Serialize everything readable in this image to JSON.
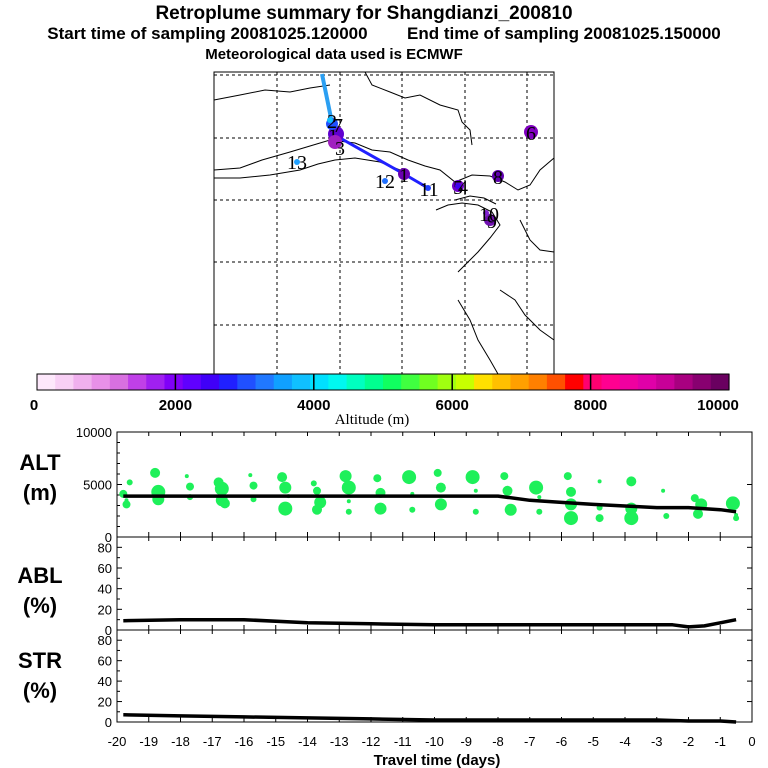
{
  "header": {
    "title": "Retroplume summary for Shangdianzi_200810",
    "start_label": "Start time of sampling 20081025.120000",
    "end_label": "End time of sampling 20081025.150000",
    "met_label": "Meteorological data used is ECMWF"
  },
  "map": {
    "point_labels": [
      "1",
      "3",
      "6",
      "1",
      "5",
      "8",
      "9",
      "7",
      "12",
      "11",
      "13",
      "10",
      "4",
      "2"
    ]
  },
  "colorbar": {
    "ticks": [
      "0",
      "2000",
      "4000",
      "6000",
      "8000",
      "10000"
    ],
    "label": "Altitude (m)",
    "colors": [
      "#fde8fb",
      "#f8d0f5",
      "#f0b0ee",
      "#e890e8",
      "#d870e0",
      "#c040e8",
      "#a020f0",
      "#8000f8",
      "#6000ff",
      "#4000f8",
      "#2020ff",
      "#2050ff",
      "#2078ff",
      "#10a0ff",
      "#10c0ff",
      "#00e0ff",
      "#00f8f0",
      "#00ffc0",
      "#00ff90",
      "#10ff60",
      "#40ff40",
      "#70ff20",
      "#a0ff10",
      "#c8ff00",
      "#ffe000",
      "#ffc000",
      "#ffa000",
      "#ff8000",
      "#ff5000",
      "#ff0000",
      "#ff0070",
      "#ff0090",
      "#f000a0",
      "#e000a8",
      "#c80098",
      "#a80080",
      "#880070",
      "#6a0060"
    ]
  },
  "chart_data": [
    {
      "type": "line",
      "name": "ALT",
      "ylabel": "ALT (m)",
      "ylabel_lines": [
        "ALT",
        "(m)"
      ],
      "ylim": [
        0,
        10000
      ],
      "yticks": [
        "10000",
        "5000",
        "0"
      ],
      "x": [
        -19.8,
        -18,
        -16,
        -14,
        -12,
        -10,
        -8,
        -7,
        -6,
        -5,
        -4,
        -3,
        -2,
        -1,
        -0.5
      ],
      "values": [
        3900,
        3900,
        3900,
        3900,
        3900,
        3900,
        3900,
        3500,
        3300,
        3100,
        2950,
        2800,
        2800,
        2600,
        2400
      ],
      "scatter": [
        [
          -19.7,
          3500
        ],
        [
          -19.6,
          5200
        ],
        [
          -19.7,
          3100
        ],
        [
          -18.8,
          6100
        ],
        [
          -18.7,
          3600
        ],
        [
          -18.7,
          4300
        ],
        [
          -17.8,
          5800
        ],
        [
          -17.7,
          3800
        ],
        [
          -17.7,
          4800
        ],
        [
          -16.8,
          5200
        ],
        [
          -16.7,
          3500
        ],
        [
          -16.7,
          4600
        ],
        [
          -15.8,
          5900
        ],
        [
          -15.7,
          3600
        ],
        [
          -15.7,
          4900
        ],
        [
          -14.8,
          5700
        ],
        [
          -14.7,
          4700
        ],
        [
          -14.7,
          2700
        ],
        [
          -14.6,
          3900
        ],
        [
          -13.8,
          5100
        ],
        [
          -13.7,
          4400
        ],
        [
          -13.7,
          2600
        ],
        [
          -12.8,
          5800
        ],
        [
          -12.7,
          4700
        ],
        [
          -12.7,
          3400
        ],
        [
          -12.7,
          2400
        ],
        [
          -11.8,
          5600
        ],
        [
          -11.7,
          4200
        ],
        [
          -11.7,
          2700
        ],
        [
          -10.8,
          5700
        ],
        [
          -10.7,
          4100
        ],
        [
          -10.7,
          2600
        ],
        [
          -9.9,
          6100
        ],
        [
          -9.8,
          4700
        ],
        [
          -9.8,
          3100
        ],
        [
          -8.8,
          5700
        ],
        [
          -8.7,
          4400
        ],
        [
          -8.7,
          2400
        ],
        [
          -7.8,
          5800
        ],
        [
          -7.7,
          4400
        ],
        [
          -7.6,
          2600
        ],
        [
          -6.8,
          4700
        ],
        [
          -6.7,
          3800
        ],
        [
          -6.7,
          2400
        ],
        [
          -5.8,
          5800
        ],
        [
          -5.7,
          4300
        ],
        [
          -5.7,
          3100
        ],
        [
          -5.7,
          1800
        ],
        [
          -4.8,
          5300
        ],
        [
          -4.8,
          2800
        ],
        [
          -4.8,
          1800
        ],
        [
          -3.8,
          5300
        ],
        [
          -3.8,
          2700
        ],
        [
          -3.8,
          1800
        ],
        [
          -2.8,
          4400
        ],
        [
          -2.7,
          2000
        ],
        [
          -1.8,
          3700
        ],
        [
          -1.7,
          2200
        ],
        [
          -1.6,
          3100
        ],
        [
          -0.6,
          3200
        ],
        [
          -0.5,
          2100
        ],
        [
          -0.5,
          1800
        ],
        [
          -19.8,
          4100
        ],
        [
          -16.6,
          3200
        ],
        [
          -13.6,
          3300
        ]
      ]
    },
    {
      "type": "line",
      "name": "ABL",
      "ylabel": "ABL (%)",
      "ylabel_lines": [
        "ABL",
        "(%)"
      ],
      "ylim": [
        0,
        90
      ],
      "yticks": [
        "80",
        "60",
        "40",
        "20",
        "0"
      ],
      "x": [
        -19.8,
        -18,
        -16,
        -14,
        -12,
        -10,
        -8,
        -6,
        -4,
        -3,
        -2.5,
        -2,
        -1.5,
        -1,
        -0.5
      ],
      "values": [
        9,
        10,
        10,
        7,
        6,
        5,
        5,
        5,
        5,
        5,
        5,
        3,
        4,
        7,
        10
      ]
    },
    {
      "type": "line",
      "name": "STR",
      "ylabel": "STR (%)",
      "ylabel_lines": [
        "STR",
        "(%)"
      ],
      "ylim": [
        0,
        90
      ],
      "yticks": [
        "80",
        "60",
        "40",
        "20",
        "0"
      ],
      "x": [
        -19.8,
        -18,
        -16,
        -14,
        -12,
        -10,
        -8,
        -6,
        -4,
        -3,
        -2,
        -1,
        -0.5
      ],
      "values": [
        7,
        6,
        5,
        4,
        3,
        2,
        2,
        2,
        2,
        2,
        1,
        1,
        0
      ]
    }
  ],
  "xaxis": {
    "ticks": [
      "-20",
      "-19",
      "-18",
      "-17",
      "-16",
      "-15",
      "-14",
      "-13",
      "-12",
      "-11",
      "-10",
      "-9",
      "-8",
      "-7",
      "-6",
      "-5",
      "-4",
      "-3",
      "-2",
      "-1",
      "0"
    ],
    "label": "Travel time (days)"
  }
}
